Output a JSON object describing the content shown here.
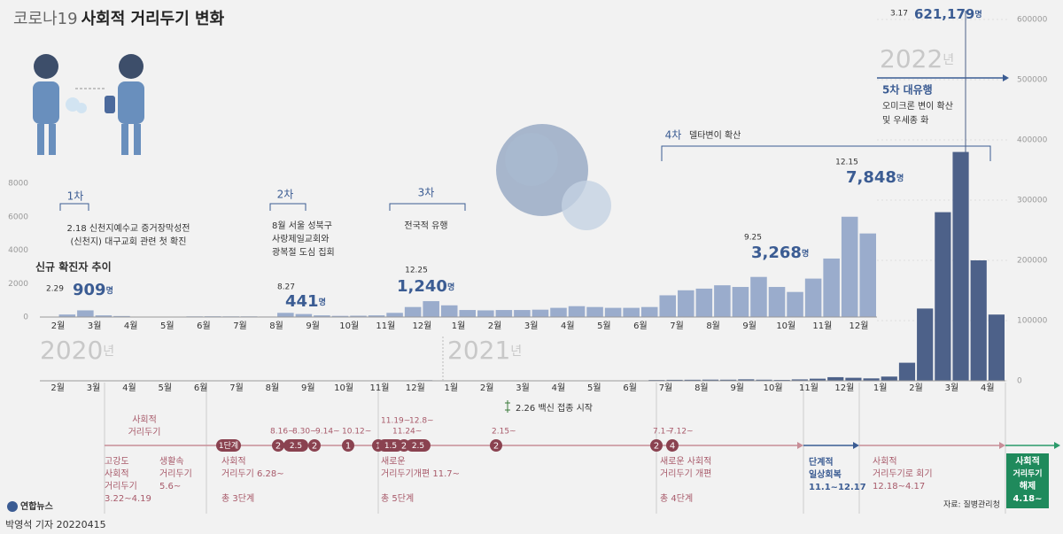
{
  "title": {
    "prefix": "코로나19",
    "main": "사회적 거리두기 변화"
  },
  "chart_data": [
    {
      "type": "bar",
      "title": "신규 확진자 추이",
      "color": "#9aaccc",
      "grid": false,
      "categories": [
        "2월",
        null,
        "3월",
        null,
        "4월",
        null,
        "5월",
        null,
        "6월",
        null,
        "7월",
        null,
        "8월",
        null,
        "9월",
        null,
        "10월",
        null,
        "11월",
        null,
        "12월",
        null,
        "1월",
        null,
        "2월",
        null,
        "3월",
        null,
        "4월",
        null,
        "5월",
        null,
        "6월",
        null,
        "7월",
        null,
        "8월",
        null,
        "9월",
        null,
        "10월",
        null,
        "11월",
        null,
        "12월",
        null
      ],
      "values": [
        0,
        150,
        400,
        100,
        60,
        15,
        15,
        25,
        40,
        45,
        40,
        40,
        30,
        250,
        180,
        100,
        70,
        80,
        100,
        250,
        600,
        950,
        700,
        420,
        400,
        420,
        420,
        440,
        550,
        650,
        600,
        550,
        550,
        600,
        1300,
        1600,
        1700,
        1900,
        1800,
        2400,
        1800,
        1500,
        2300,
        3500,
        6000,
        5000
      ],
      "ylim": [
        0,
        8000
      ],
      "yticks": [
        0,
        2000,
        4000,
        6000,
        8000
      ]
    },
    {
      "type": "bar",
      "color": "#4d6189",
      "grid": true,
      "categories": [
        "2월",
        null,
        "3월",
        null,
        "4월",
        null,
        "5월",
        null,
        "6월",
        null,
        "7월",
        null,
        "8월",
        null,
        "9월",
        null,
        "10월",
        null,
        "11월",
        null,
        "12월",
        null,
        "1월",
        null,
        "2월",
        null,
        "3월",
        null,
        "4월",
        null,
        "5월",
        null,
        "6월",
        null,
        "7월",
        null,
        "8월",
        null,
        "9월",
        null,
        "10월",
        null,
        "11월",
        null,
        "12월",
        null,
        "1월",
        null,
        "2월",
        null,
        "3월",
        null,
        "4월",
        null
      ],
      "values": [
        0,
        150,
        400,
        100,
        60,
        15,
        15,
        25,
        40,
        45,
        40,
        40,
        30,
        250,
        180,
        100,
        70,
        80,
        100,
        250,
        600,
        950,
        700,
        420,
        400,
        420,
        420,
        440,
        550,
        650,
        600,
        550,
        550,
        600,
        1300,
        1600,
        1700,
        1900,
        1800,
        2400,
        1800,
        1500,
        2300,
        3500,
        6000,
        5000,
        4000,
        7000,
        30000,
        120000,
        280000,
        380000,
        200000,
        110000
      ],
      "ylim": [
        0,
        600000
      ],
      "yticks": [
        0,
        100000,
        200000,
        300000,
        400000,
        500000,
        600000
      ]
    }
  ],
  "years": [
    "2020",
    "2021",
    "2022"
  ],
  "year_unit": "년",
  "waves": [
    {
      "label": "1차",
      "lines": [
        "2.18 신천지예수교 증거장막성전",
        "(신천지) 대구교회 관련 첫 확진"
      ]
    },
    {
      "label": "2차",
      "lines": [
        "8월 서울 성북구",
        "사랑제일교회와",
        "광복절 도심 집회"
      ]
    },
    {
      "label": "3차",
      "lines": [
        "전국적 유행"
      ]
    },
    {
      "label": "4차",
      "lines": [
        "델타변이 확산"
      ]
    },
    {
      "label": "5차 대유행",
      "lines": [
        "오미크론 변이 확산",
        "및 우세종 화"
      ]
    }
  ],
  "peaks": [
    {
      "date": "2.29",
      "value": "909",
      "unit": "명"
    },
    {
      "date": "8.27",
      "value": "441",
      "unit": "명"
    },
    {
      "date": "12.25",
      "value": "1,240",
      "unit": "명"
    },
    {
      "date": "9.25",
      "value": "3,268",
      "unit": "명"
    },
    {
      "date": "12.15",
      "value": "7,848",
      "unit": "명"
    },
    {
      "date": "3.17",
      "value": "621,179",
      "unit": "명"
    }
  ],
  "vaccine": "2.26 백신 접종 시작",
  "timeline": {
    "top_note": [
      "사회적",
      "거리두기"
    ],
    "dates": [
      "8.16~",
      "8.30~",
      "9.14~",
      "10.12~",
      "11.19~",
      "12.8~",
      "11.24~",
      "2.15~",
      "7.1~",
      "7.12~"
    ],
    "stages": [
      "1단계",
      "2",
      "2.5",
      "2",
      "1",
      "1",
      "1.5",
      "2",
      "2.5",
      "2",
      "2",
      "4"
    ],
    "notes": [
      [
        "고강도",
        "사회적",
        "거리두기",
        "3.22~4.19"
      ],
      [
        "생활속",
        "거리두기",
        "5.6~"
      ],
      [
        "사회적",
        "거리두기 6.28~"
      ],
      [
        "새로운",
        "거리두기개편 11.7~"
      ],
      [
        "새로운 사회적",
        "거리두기 개편"
      ],
      [
        "사회적",
        "거리두기로 회기",
        "12.18~4.17"
      ]
    ],
    "totals": [
      "총 3단계",
      "총 5단계",
      "총 4단계"
    ],
    "recovery": [
      "단계적",
      "일상회복",
      "11.1~12.17"
    ],
    "end": [
      "사회적",
      "거리두기",
      "해제",
      "4.18~"
    ]
  },
  "footer": {
    "logo": "연합뉴스",
    "credit": "박영석 기자  20220415",
    "source": "자료: 질병관리청"
  }
}
